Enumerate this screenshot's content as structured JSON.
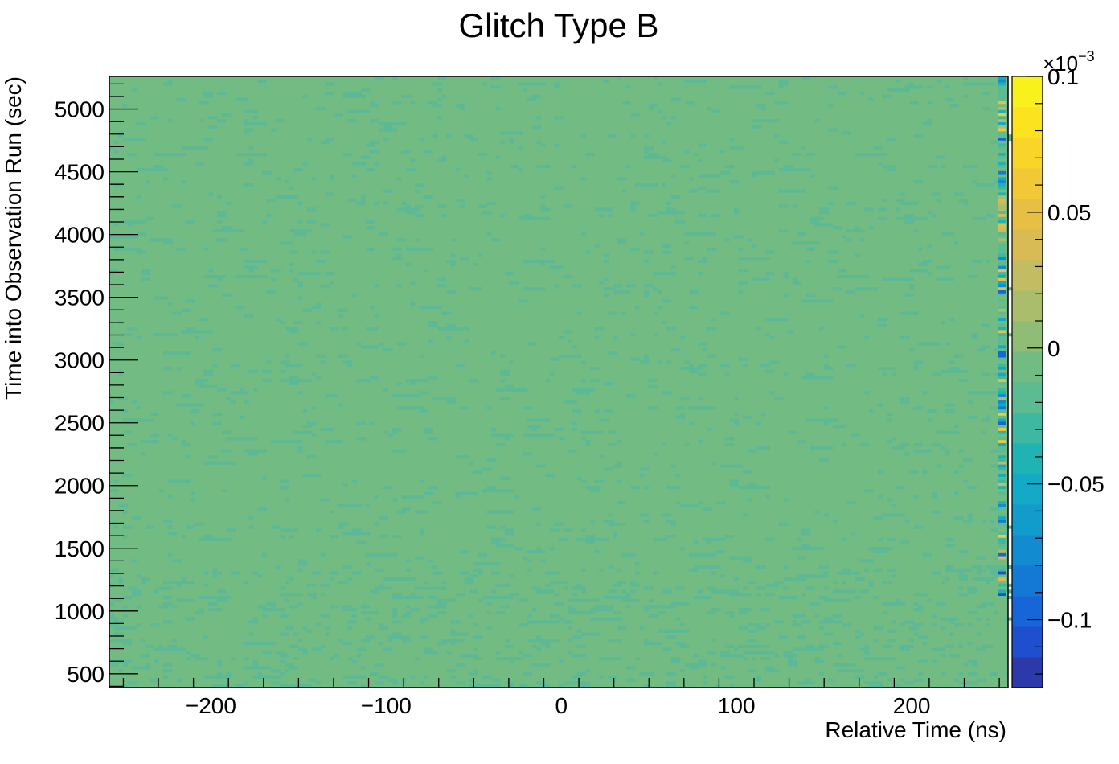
{
  "chart_data": {
    "type": "heatmap",
    "title": "Glitch Type B",
    "xlabel": "Relative Time (ns)",
    "ylabel": "Time into Observation Run (sec)",
    "xlim": [
      -258,
      255
    ],
    "ylim": [
      390,
      5260
    ],
    "x_ticks": [
      -200,
      -100,
      0,
      100,
      200
    ],
    "x_tick_labels": [
      "−200",
      "−100",
      "0",
      "100",
      "200"
    ],
    "y_ticks": [
      500,
      1000,
      1500,
      2000,
      2500,
      3000,
      3500,
      4000,
      4500,
      5000
    ],
    "y_tick_labels": [
      "500",
      "1000",
      "1500",
      "2000",
      "2500",
      "3000",
      "3500",
      "4000",
      "4500",
      "5000"
    ],
    "z_range": [
      -0.125,
      0.1
    ],
    "z_exponent_label": "×10",
    "z_exponent_power": "−3",
    "z_ticks": [
      0.1,
      0.05,
      0,
      -0.05,
      -0.1
    ],
    "z_tick_labels": [
      "0.1",
      "0.05",
      "0",
      "−0.05",
      "−0.1"
    ],
    "dominant_value": 0,
    "colors": {
      "background_cell": "#72bb82",
      "weak_negative": "#5cb895",
      "palette": [
        "#2b3aa8",
        "#1f4fcf",
        "#1766d9",
        "#1479d4",
        "#128bd0",
        "#129ccc",
        "#14a9c6",
        "#20b3b4",
        "#3eb8a0",
        "#5cbb91",
        "#72bb82",
        "#8fbd75",
        "#aabd6c",
        "#c3bc62",
        "#d8bb55",
        "#e8bf45",
        "#f2c836",
        "#f8d528",
        "#fbe320",
        "#f9f11c"
      ]
    }
  }
}
